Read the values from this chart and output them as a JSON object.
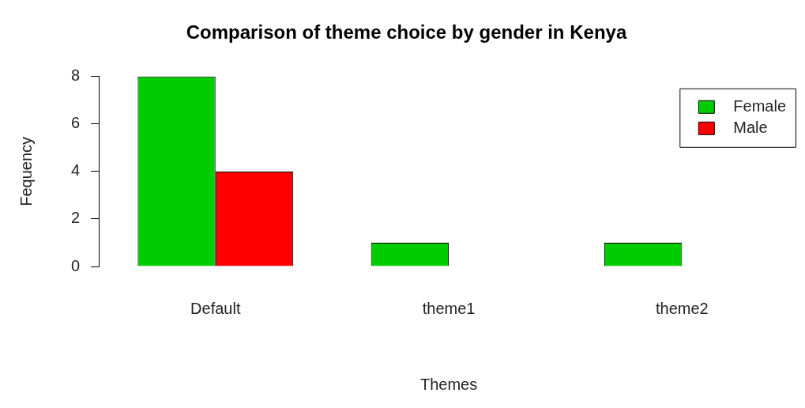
{
  "chart_data": {
    "type": "bar",
    "title": "Comparison of theme choice by gender in Kenya",
    "xlabel": "Themes",
    "ylabel": "Fequency",
    "categories": [
      "Default",
      "theme1",
      "theme2"
    ],
    "series": [
      {
        "name": "Female",
        "color": "#00cd00",
        "values": [
          8,
          1,
          1
        ]
      },
      {
        "name": "Male",
        "color": "#ff0000",
        "values": [
          4,
          0,
          0
        ]
      }
    ],
    "ylim": [
      0,
      8
    ],
    "yticks": [
      0,
      2,
      4,
      6,
      8
    ],
    "grid": false,
    "legend": "top right"
  }
}
